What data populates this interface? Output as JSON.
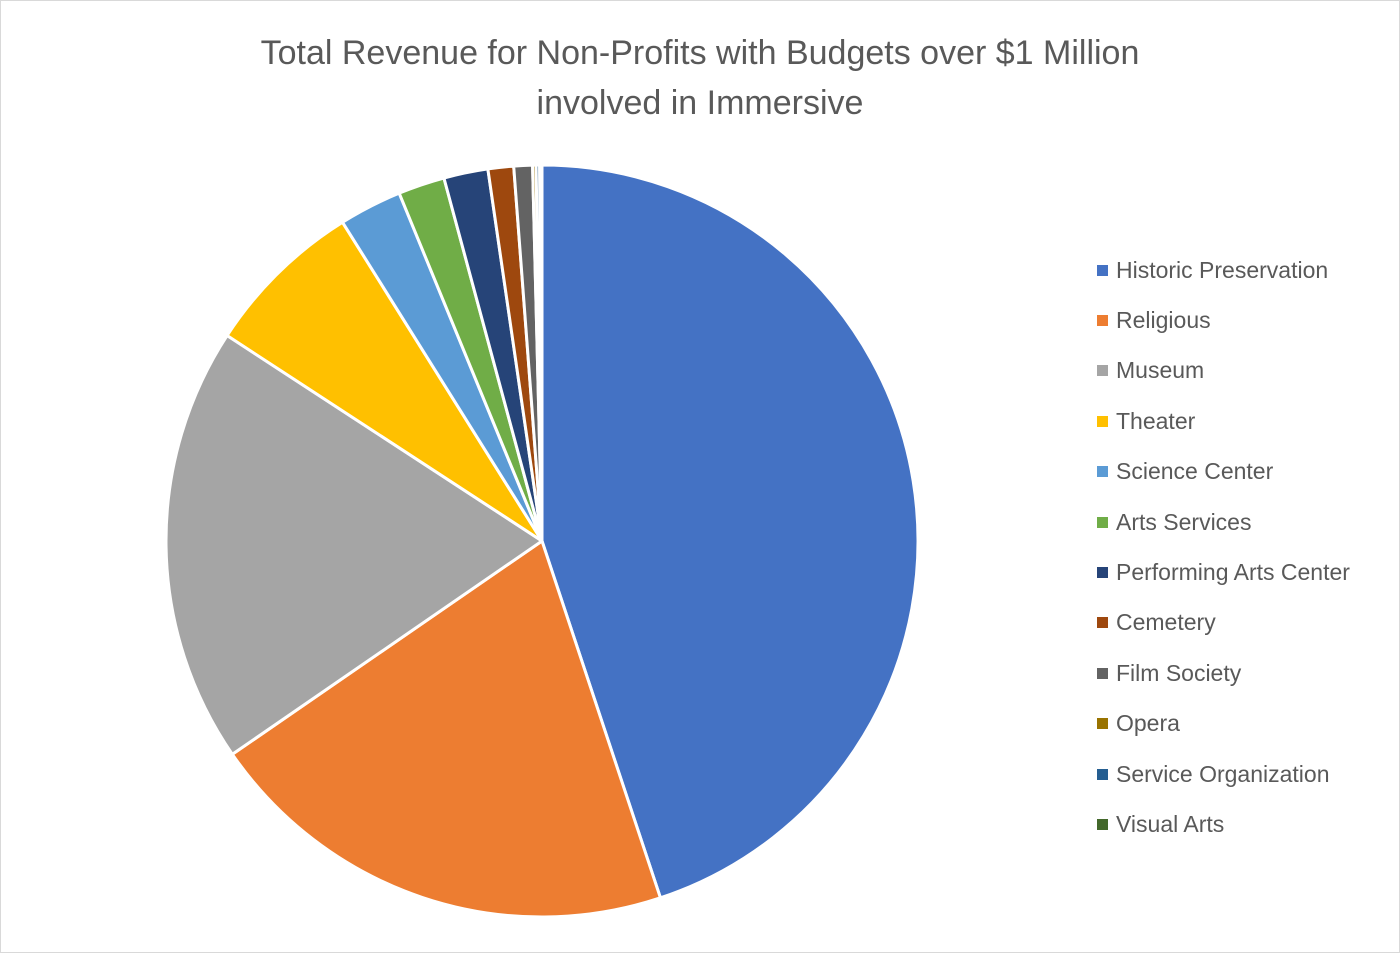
{
  "chart_data": {
    "type": "pie",
    "title": "Total Revenue for Non-Profits with Budgets over $1 Million",
    "subtitle": "involved in Immersive",
    "legend_position": "right",
    "slices": [
      {
        "label": "Historic Preservation",
        "value": 44.9,
        "color": "#4472C4"
      },
      {
        "label": "Religious",
        "value": 20.5,
        "color": "#ED7D31"
      },
      {
        "label": "Museum",
        "value": 18.8,
        "color": "#A5A5A5"
      },
      {
        "label": "Theater",
        "value": 6.9,
        "color": "#FFC000"
      },
      {
        "label": "Science Center",
        "value": 2.7,
        "color": "#5B9BD5"
      },
      {
        "label": "Arts Services",
        "value": 2.0,
        "color": "#70AD47"
      },
      {
        "label": "Performing Arts Center",
        "value": 1.9,
        "color": "#264478"
      },
      {
        "label": "Cemetery",
        "value": 1.1,
        "color": "#9E480E"
      },
      {
        "label": "Film Society",
        "value": 0.8,
        "color": "#636363"
      },
      {
        "label": "Opera",
        "value": 0.15,
        "color": "#997300"
      },
      {
        "label": "Service Organization",
        "value": 0.15,
        "color": "#255E91"
      },
      {
        "label": "Visual Arts",
        "value": 0.1,
        "color": "#43682B"
      }
    ]
  }
}
